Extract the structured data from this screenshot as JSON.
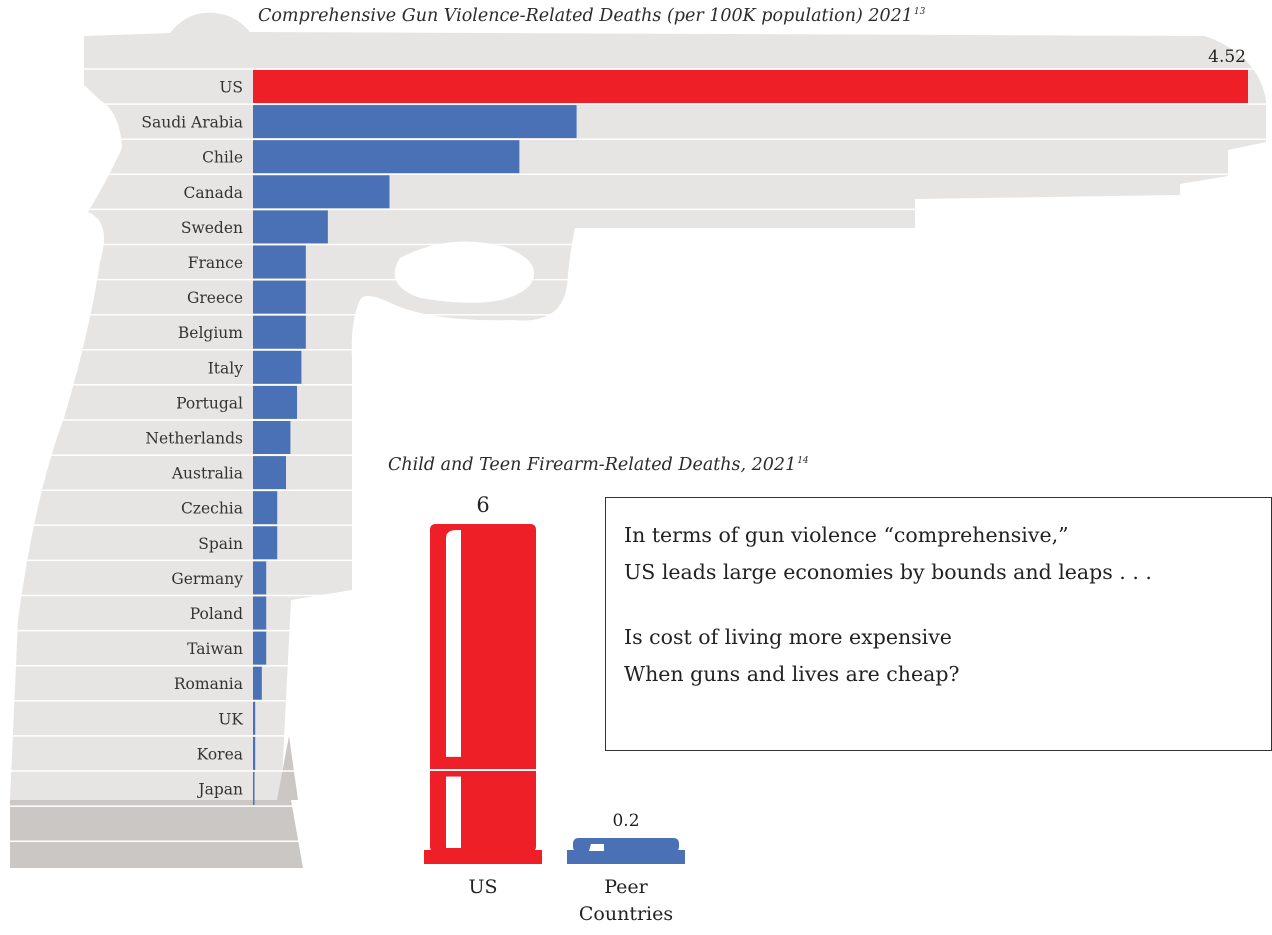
{
  "chart_data": [
    {
      "type": "bar",
      "orientation": "horizontal",
      "title": "Comprehensive Gun Violence-Related Deaths (per 100K population) 2021",
      "title_footnote": "13",
      "categories": [
        "US",
        "Saudi Arabia",
        "Chile",
        "Canada",
        "Sweden",
        "France",
        "Greece",
        "Belgium",
        "Italy",
        "Portugal",
        "Netherlands",
        "Australia",
        "Czechia",
        "Spain",
        "Germany",
        "Poland",
        "Taiwan",
        "Romania",
        "UK",
        "Korea",
        "Japan"
      ],
      "values": [
        4.52,
        1.47,
        1.21,
        0.62,
        0.34,
        0.24,
        0.24,
        0.24,
        0.22,
        0.2,
        0.17,
        0.15,
        0.11,
        0.11,
        0.06,
        0.06,
        0.06,
        0.04,
        0.01,
        0.01,
        0.005
      ],
      "data_labels": {
        "US": "4.52"
      },
      "xlim": [
        0,
        4.52
      ],
      "highlight": {
        "category": "US",
        "color": "#ee1f26"
      },
      "bar_color": "#4a70b5",
      "grid": false,
      "legend": "none"
    },
    {
      "type": "bar",
      "orientation": "vertical",
      "title": "Child and Teen Firearm-Related Deaths, 2021",
      "title_footnote": "14",
      "categories": [
        "US",
        "Peer Countries"
      ],
      "values": [
        6,
        0.2
      ],
      "data_labels": [
        "6",
        "0.2"
      ],
      "colors": [
        "#ee1f26",
        "#4a70b5"
      ],
      "ylim": [
        0,
        6
      ],
      "grid": false,
      "legend": "none"
    }
  ],
  "caption": {
    "line1": "In terms of gun violence “comprehensive,”",
    "line2": "US leads large economies by bounds and leaps . . .",
    "line3": "Is cost of living more expensive",
    "line4": "When guns and lives are cheap?"
  },
  "colors": {
    "us_red": "#ee1f26",
    "peer_blue": "#4a70b5",
    "silhouette_light": "#e6e5e3",
    "silhouette_dark": "#cbc7c4",
    "text": "#2b2b2b"
  }
}
